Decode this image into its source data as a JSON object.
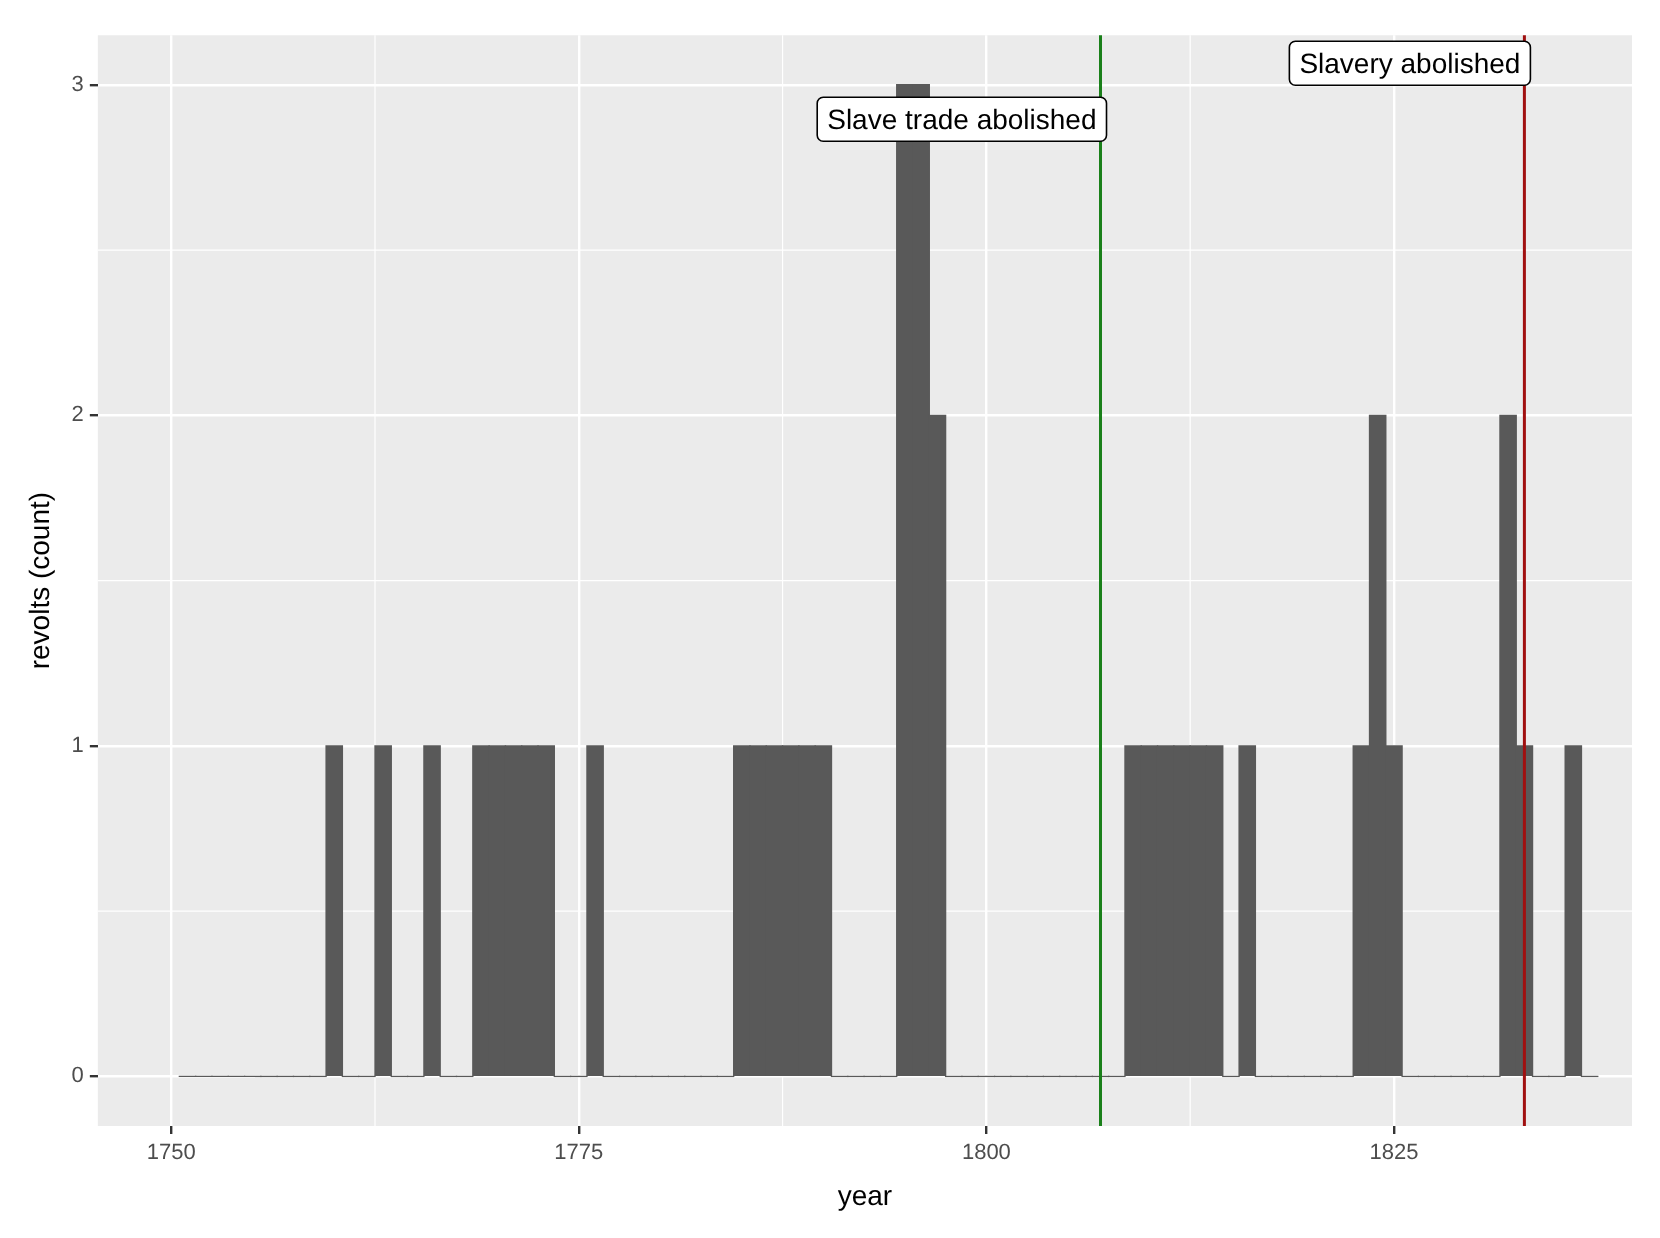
{
  "chart_data": {
    "type": "histogram",
    "xlabel": "year",
    "ylabel": "revolts (count)",
    "bins": [
      1750.5,
      1751.5,
      1752.5,
      1753.5,
      1754.5,
      1755.5,
      1756.5,
      1757.5,
      1758.5,
      1759.5,
      1760.5,
      1761.5,
      1762.5,
      1763.5,
      1764.5,
      1765.5,
      1766.5,
      1767.5,
      1768.5,
      1769.5,
      1770.5,
      1771.5,
      1772.5,
      1773.5,
      1774.5,
      1775.5,
      1776.5,
      1777.5,
      1778.5,
      1779.5,
      1780.5,
      1781.5,
      1782.5,
      1783.5,
      1784.5,
      1785.5,
      1786.5,
      1787.5,
      1788.5,
      1789.5,
      1790.5,
      1791.5,
      1792.5,
      1793.5,
      1794.5,
      1795.5,
      1796.5,
      1797.5,
      1798.5,
      1799.5,
      1800.5,
      1801.5,
      1802.5,
      1803.5,
      1804.5,
      1805.5,
      1806.5,
      1807.5,
      1808.5,
      1809.5,
      1810.5,
      1811.5,
      1812.5,
      1813.5,
      1814.5,
      1815.5,
      1816.5,
      1817.5,
      1818.5,
      1819.5,
      1820.5,
      1821.5,
      1822.5,
      1823.5,
      1824.5,
      1825.5,
      1826.5,
      1827.5,
      1828.5,
      1829.5,
      1830.5,
      1831.5,
      1832.5,
      1833.5,
      1834.5,
      1835.5,
      1836.5,
      1837.5
    ],
    "values": [
      0,
      0,
      0,
      0,
      0,
      0,
      0,
      0,
      0,
      1,
      0,
      0,
      1,
      0,
      0,
      1,
      0,
      0,
      1,
      1,
      1,
      1,
      1,
      0,
      0,
      1,
      0,
      0,
      0,
      0,
      0,
      0,
      0,
      0,
      1,
      1,
      1,
      1,
      1,
      1,
      0,
      0,
      0,
      0,
      3,
      3,
      2,
      0,
      0,
      0,
      0,
      0,
      0,
      0,
      0,
      0,
      0,
      0,
      1,
      1,
      1,
      1,
      1,
      1,
      0,
      1,
      0,
      0,
      0,
      0,
      0,
      0,
      1,
      2,
      1,
      0,
      0,
      0,
      0,
      0,
      0,
      2,
      1,
      0,
      0,
      1,
      0
    ],
    "color": "#595959",
    "xlim": [
      1745.5,
      1839.6
    ],
    "xticks": [
      1750,
      1775,
      1800,
      1825
    ],
    "ylim": [
      -0.15,
      3.15
    ],
    "yticks": [
      0,
      1,
      2,
      3
    ],
    "grid": true,
    "ref_lines": [
      {
        "axis": "x",
        "value": 1807,
        "label": "Slave trade abolished",
        "color": "#1a801a"
      },
      {
        "axis": "x",
        "value": 1833,
        "label": "Slavery abolished",
        "color": "#a01010"
      }
    ]
  }
}
